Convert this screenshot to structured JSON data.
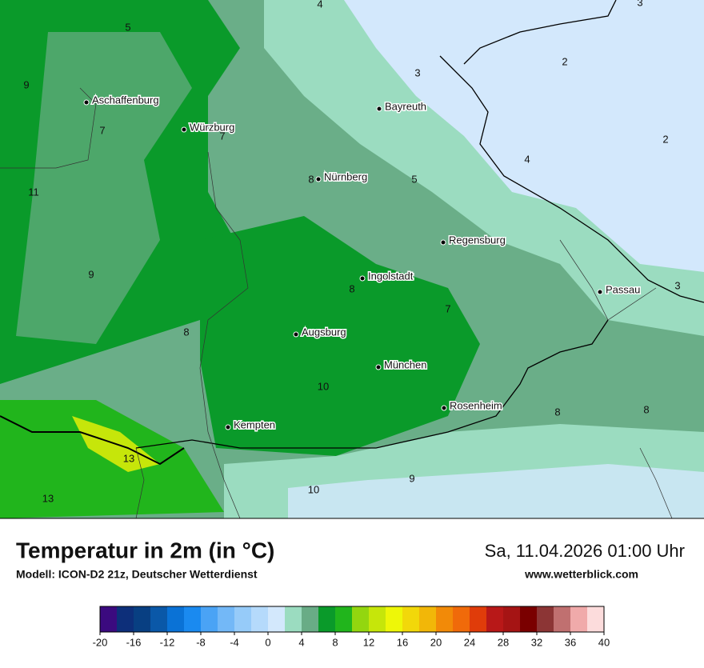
{
  "title": "Temperatur in 2m (in °C)",
  "model": "Modell: ICON-D2 21z, Deutscher Wetterdienst",
  "datetime": "Sa, 11.04.2026 01:00 Uhr",
  "website": "www.wetterblick.com",
  "cities": [
    "Aschaffenburg",
    "Würzburg",
    "Bayreuth",
    "Nürnberg",
    "Regensburg",
    "Ingolstadt",
    "Passau",
    "Augsburg",
    "München",
    "Rosenheim",
    "Kempten"
  ],
  "map_labels": [
    "4",
    "3",
    "5",
    "2",
    "3",
    "9",
    "2",
    "7",
    "7",
    "4",
    "11",
    "8",
    "5",
    "9",
    "8",
    "3",
    "7",
    "8",
    "10",
    "8",
    "8",
    "13",
    "13",
    "10",
    "9"
  ],
  "legend": {
    "colors": [
      "#3b0a7f",
      "#0d2f7a",
      "#083f82",
      "#0a58a8",
      "#0a72d6",
      "#1a8af0",
      "#4aa3f5",
      "#73b8f7",
      "#96cbf9",
      "#b5dafb",
      "#d3e8fc",
      "#9bdcc0",
      "#69ac86",
      "#0a9a2a",
      "#21b51c",
      "#93d60f",
      "#c6e60a",
      "#eef708",
      "#f2d80a",
      "#f2b708",
      "#f28a08",
      "#f06a0a",
      "#e03c0a",
      "#b81818",
      "#a51414",
      "#7a0000",
      "#8c3535",
      "#c07070",
      "#f0aaaa",
      "#fcdcdc"
    ],
    "ticks": [
      -20,
      -16,
      -12,
      -8,
      -4,
      0,
      4,
      8,
      12,
      16,
      20,
      24,
      28,
      32,
      36,
      40
    ]
  }
}
